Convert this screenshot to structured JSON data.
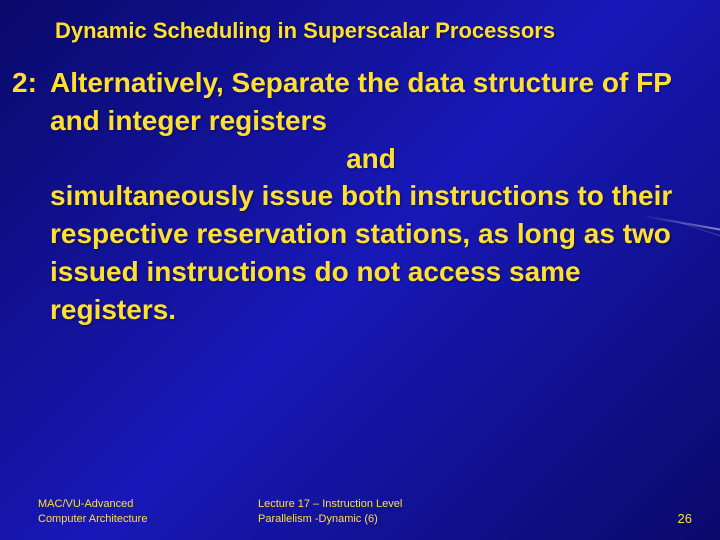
{
  "colors": {
    "bg_gradient_start": "#0a0a6b",
    "bg_gradient_mid": "#1818b8",
    "text_color": "#ffe030"
  },
  "typography": {
    "title_fontsize": 22,
    "body_fontsize": 28,
    "footer_fontsize": 11,
    "page_num_fontsize": 13,
    "font_weight": "bold",
    "font_family": "Arial"
  },
  "title": "Dynamic Scheduling in Superscalar Processors",
  "item_number": "2:",
  "body_line1": "Alternatively, Separate the data structure of FP and integer registers",
  "body_center": "and",
  "body_line2": "simultaneously issue both instructions to their respective reservation stations, as long as two issued instructions do not access same registers.",
  "footer_left_l1": "MAC/VU-Advanced",
  "footer_left_l2": "Computer Architecture",
  "footer_center_l1": "Lecture 17 – Instruction Level",
  "footer_center_l2": "Parallelism -Dynamic (6)",
  "page_number": "26"
}
